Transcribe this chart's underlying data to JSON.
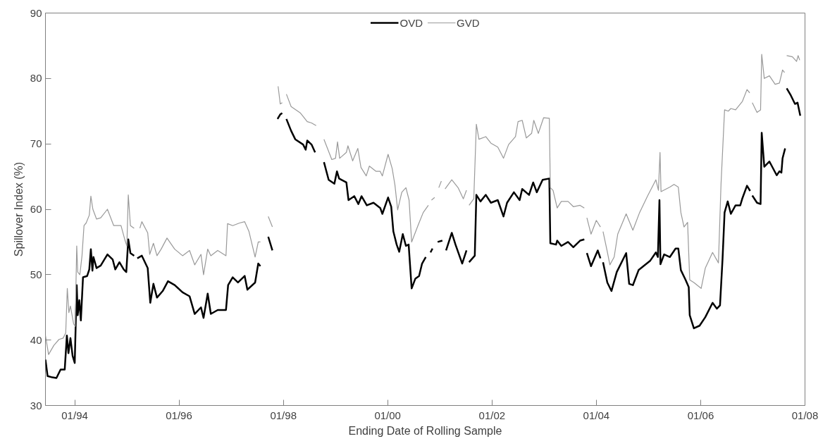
{
  "chart_data": {
    "type": "line",
    "xlabel": "Ending Date of Rolling Sample",
    "ylabel": "Spillover Index (%)",
    "xlim": [
      "1993-06-10",
      "2008-01-01"
    ],
    "ylim": [
      30,
      90
    ],
    "xticks": [
      {
        "value": "1994-01-01",
        "label": "01/94"
      },
      {
        "value": "1996-01-01",
        "label": "01/96"
      },
      {
        "value": "1998-01-01",
        "label": "01/98"
      },
      {
        "value": "2000-01-01",
        "label": "01/00"
      },
      {
        "value": "2002-01-01",
        "label": "01/02"
      },
      {
        "value": "2004-01-01",
        "label": "01/04"
      },
      {
        "value": "2006-01-01",
        "label": "01/06"
      },
      {
        "value": "2008-01-01",
        "label": "01/08"
      }
    ],
    "yticks": [
      30,
      40,
      50,
      60,
      70,
      80,
      90
    ],
    "grid": false,
    "legend": "top",
    "marker": "none",
    "line_style": "solid",
    "series": [
      {
        "name": "OVD",
        "color": "#000000",
        "x": [
          "1993-06-10",
          "1993-06-25",
          "1993-07-28",
          "1993-08-26",
          "1993-09-24",
          "1993-10-23",
          "1993-11-07",
          "1993-11-18",
          "1993-12-02",
          "1993-12-17",
          "1994-01-01",
          "1994-01-15",
          "1994-01-22",
          "1994-02-02",
          "1994-02-13",
          "1994-02-28",
          "1994-03-29",
          "1994-04-13",
          "1994-04-24",
          "1994-05-05",
          "1994-05-12",
          "1994-06-03",
          "1994-07-02",
          "1994-08-18",
          "1994-09-24",
          "1994-10-12",
          "1994-11-10",
          "1994-12-10",
          "1994-12-28",
          "1995-01-11",
          "1995-01-26",
          "1995-02-21",
          "1995-03-04",
          "1995-03-15",
          "1995-04-16",
          "1995-05-27",
          "1995-06-14",
          "1995-07-06",
          "1995-07-31",
          "1995-09-09",
          "1995-10-16",
          "1995-12-02",
          "1996-01-26",
          "1996-03-15",
          "1996-04-20",
          "1996-06-03",
          "1996-06-21",
          "1996-07-20",
          "1996-08-11",
          "1996-09-28",
          "1996-11-25",
          "1996-12-10",
          "1997-01-11",
          "1997-02-17",
          "1997-04-05",
          "1997-04-24",
          "1997-06-17",
          "1997-07-09",
          "1997-07-24",
          "1997-08-22",
          "1997-09-17",
          "1997-10-16",
          "1997-11-03",
          "1997-11-21",
          "1997-12-10",
          "1997-12-24",
          "1998-01-08",
          "1998-01-22",
          "1998-02-24",
          "1998-03-25",
          "1998-05-19",
          "1998-06-06",
          "1998-06-17",
          "1998-07-17",
          "1998-08-11",
          "1998-09-13",
          "1998-10-12",
          "1998-11-14",
          "1998-12-24",
          "1999-01-11",
          "1999-01-26",
          "1999-03-18",
          "1999-04-02",
          "1999-05-12",
          "1999-06-10",
          "1999-07-02",
          "1999-08-08",
          "1999-09-24",
          "1999-11-10",
          "1999-11-25",
          "2000-01-04",
          "2000-01-26",
          "2000-02-10",
          "2000-03-04",
          "2000-03-22",
          "2000-04-16",
          "2000-05-08",
          "2000-05-27",
          "2000-06-17",
          "2000-07-13",
          "2000-08-08",
          "2000-08-29",
          "2000-09-24",
          "2000-10-12",
          "2000-10-27",
          "2000-11-10",
          "2000-12-04",
          "2000-12-16",
          "2001-01-18",
          "2001-01-30",
          "2001-02-13",
          "2001-03-25",
          "2001-04-20",
          "2001-06-06",
          "2001-07-06",
          "2001-07-15",
          "2001-07-24",
          "2001-09-02",
          "2001-09-13",
          "2001-10-12",
          "2001-11-18",
          "2001-12-24",
          "2002-02-10",
          "2002-03-22",
          "2002-04-16",
          "2002-06-03",
          "2002-07-13",
          "2002-07-31",
          "2002-09-17",
          "2002-10-16",
          "2002-11-10",
          "2002-12-21",
          "2003-02-06",
          "2003-02-13",
          "2003-03-25",
          "2003-04-02",
          "2003-05-01",
          "2003-06-17",
          "2003-07-24",
          "2003-09-09",
          "2003-10-09",
          "2003-10-20",
          "2003-10-27",
          "2003-11-25",
          "2004-01-11",
          "2004-01-30",
          "2004-02-06",
          "2004-02-17",
          "2004-03-18",
          "2004-04-16",
          "2004-05-23",
          "2004-07-28",
          "2004-08-18",
          "2004-09-13",
          "2004-10-23",
          "2004-12-02",
          "2005-01-11",
          "2005-02-21",
          "2005-03-07",
          "2005-03-18",
          "2005-03-25",
          "2005-04-20",
          "2005-05-30",
          "2005-07-09",
          "2005-07-28",
          "2005-08-15",
          "2005-09-17",
          "2005-10-09",
          "2005-10-16",
          "2005-11-14",
          "2005-12-24",
          "2006-02-02",
          "2006-03-25",
          "2006-04-24",
          "2006-05-16",
          "2006-06-03",
          "2006-06-17",
          "2006-07-09",
          "2006-07-31",
          "2006-09-02",
          "2006-10-05",
          "2006-10-20",
          "2006-11-21",
          "2006-12-13",
          "2006-12-21",
          "2006-12-28",
          "2007-01-30",
          "2007-02-24",
          "2007-03-04",
          "2007-03-22",
          "2007-04-27",
          "2007-06-17",
          "2007-07-06",
          "2007-07-20",
          "2007-07-28",
          "2007-08-15",
          "2007-08-20",
          "2007-08-26",
          "2007-09-24",
          "2007-10-23",
          "2007-11-10",
          "2007-11-29"
        ],
        "values": [
          37.0,
          34.5,
          34.3,
          34.2,
          35.5,
          35.5,
          40.7,
          38.0,
          40.3,
          37.6,
          36.5,
          48.4,
          43.8,
          46.1,
          43.0,
          49.6,
          49.8,
          50.8,
          53.9,
          50.6,
          52.7,
          51.0,
          51.4,
          53.1,
          52.3,
          50.8,
          51.9,
          50.8,
          50.4,
          55.4,
          53.3,
          52.9,
          null,
          52.5,
          52.9,
          51.0,
          45.7,
          48.6,
          46.5,
          47.5,
          49.0,
          48.4,
          47.3,
          46.7,
          44.0,
          45.0,
          43.4,
          47.1,
          44.0,
          44.6,
          44.6,
          48.4,
          49.6,
          48.8,
          49.8,
          47.7,
          48.8,
          51.7,
          51.3,
          null,
          55.8,
          53.7,
          null,
          73.8,
          74.5,
          74.7,
          null,
          73.8,
          72.0,
          70.7,
          69.9,
          69.1,
          70.5,
          69.9,
          68.7,
          null,
          67.2,
          64.5,
          63.9,
          65.8,
          64.7,
          64.1,
          61.4,
          62.0,
          60.8,
          62.0,
          60.6,
          61.0,
          60.2,
          59.3,
          61.8,
          60.4,
          56.6,
          54.6,
          53.5,
          56.2,
          54.4,
          54.6,
          47.9,
          49.4,
          49.8,
          51.7,
          52.7,
          null,
          53.4,
          54.0,
          null,
          55.0,
          55.2,
          null,
          53.7,
          56.4,
          54.6,
          51.7,
          53.7,
          null,
          51.9,
          52.9,
          62.2,
          61.2,
          62.2,
          61.0,
          61.4,
          58.9,
          61.0,
          62.6,
          61.4,
          63.1,
          62.2,
          64.1,
          62.6,
          64.5,
          64.7,
          54.8,
          54.6,
          55.2,
          54.4,
          55.0,
          54.2,
          55.2,
          55.4,
          null,
          53.3,
          51.3,
          53.7,
          52.5,
          null,
          51.9,
          48.8,
          47.5,
          50.4,
          53.3,
          48.6,
          48.4,
          50.7,
          51.4,
          52.1,
          53.4,
          52.7,
          61.4,
          51.6,
          53.1,
          52.7,
          54.0,
          54.0,
          50.7,
          49.2,
          48.1,
          43.8,
          41.8,
          42.2,
          43.5,
          45.7,
          44.8,
          45.3,
          52.5,
          59.5,
          61.2,
          59.3,
          60.6,
          60.6,
          61.7,
          63.6,
          62.8,
          null,
          62.1,
          61.0,
          60.8,
          71.7,
          66.5,
          67.3,
          65.2,
          65.8,
          65.6,
          67.8,
          69.3,
          null,
          78.5,
          77.4,
          76.1,
          76.3,
          74.3
        ]
      },
      {
        "name": "GVD",
        "color": "#999999",
        "x": [
          "1993-06-10",
          "1993-07-02",
          "1993-08-08",
          "1993-09-13",
          "1993-10-12",
          "1993-10-30",
          "1993-11-10",
          "1993-11-21",
          "1993-12-02",
          "1993-12-24",
          "1994-01-04",
          "1994-01-15",
          "1994-01-22",
          "1994-02-06",
          "1994-02-21",
          "1994-03-07",
          "1994-03-22",
          "1994-04-13",
          "1994-04-24",
          "1994-05-08",
          "1994-06-03",
          "1994-07-02",
          "1994-08-18",
          "1994-10-01",
          "1994-11-21",
          "1994-12-17",
          "1995-01-01",
          "1995-01-11",
          "1995-01-26",
          "1995-02-21",
          "1995-03-15",
          "1995-04-02",
          "1995-04-16",
          "1995-05-27",
          "1995-06-10",
          "1995-07-06",
          "1995-07-31",
          "1995-08-29",
          "1995-10-09",
          "1995-12-02",
          "1996-01-26",
          "1996-03-15",
          "1996-04-20",
          "1996-06-03",
          "1996-06-21",
          "1996-07-20",
          "1996-08-11",
          "1996-09-28",
          "1996-11-25",
          "1996-12-06",
          "1997-01-11",
          "1997-02-28",
          "1997-04-05",
          "1997-05-05",
          "1997-06-17",
          "1997-07-09",
          "1997-07-24",
          "1997-08-22",
          "1997-09-17",
          "1997-10-16",
          "1997-11-07",
          "1997-11-25",
          "1997-12-10",
          "1997-12-24",
          "1998-01-08",
          "1998-01-22",
          "1998-02-24",
          "1998-05-01",
          "1998-06-17",
          "1998-07-17",
          "1998-08-18",
          "1998-09-13",
          "1998-10-12",
          "1998-12-06",
          "1999-01-01",
          "1999-01-15",
          "1999-01-30",
          "1999-03-18",
          "1999-03-29",
          "1999-05-01",
          "1999-06-06",
          "1999-06-28",
          "1999-08-04",
          "1999-08-26",
          "1999-10-12",
          "1999-11-10",
          "1999-11-25",
          "2000-01-04",
          "2000-02-02",
          "2000-02-21",
          "2000-03-11",
          "2000-04-09",
          "2000-05-08",
          "2000-05-30",
          "2000-06-17",
          "2000-07-31",
          "2000-09-06",
          "2000-10-12",
          "2000-10-23",
          "2000-11-03",
          "2000-11-25",
          "2000-12-10",
          "2000-12-24",
          "2001-01-11",
          "2001-01-26",
          "2001-02-06",
          "2001-03-25",
          "2001-05-08",
          "2001-06-14",
          "2001-07-06",
          "2001-07-15",
          "2001-07-24",
          "2001-08-26",
          "2001-09-13",
          "2001-10-01",
          "2001-11-18",
          "2001-12-24",
          "2002-02-10",
          "2002-03-22",
          "2002-04-27",
          "2002-06-14",
          "2002-07-02",
          "2002-07-31",
          "2002-08-29",
          "2002-10-05",
          "2002-10-20",
          "2002-11-21",
          "2002-12-28",
          "2003-02-06",
          "2003-02-13",
          "2003-03-04",
          "2003-04-02",
          "2003-05-01",
          "2003-06-17",
          "2003-07-24",
          "2003-09-09",
          "2003-10-09",
          "2003-10-20",
          "2003-10-27",
          "2003-11-25",
          "2004-01-01",
          "2004-01-30",
          "2004-02-06",
          "2004-02-17",
          "2004-03-18",
          "2004-04-05",
          "2004-05-05",
          "2004-05-30",
          "2004-07-28",
          "2004-09-13",
          "2004-10-30",
          "2004-12-24",
          "2005-02-21",
          "2005-03-11",
          "2005-03-22",
          "2005-03-29",
          "2005-05-30",
          "2005-06-28",
          "2005-07-28",
          "2005-08-15",
          "2005-09-06",
          "2005-10-01",
          "2005-10-16",
          "2005-11-14",
          "2006-01-04",
          "2006-02-02",
          "2006-03-25",
          "2006-05-05",
          "2006-05-23",
          "2006-06-17",
          "2006-07-13",
          "2006-07-31",
          "2006-09-02",
          "2006-10-20",
          "2006-11-21",
          "2006-12-10",
          "2006-12-21",
          "2006-12-28",
          "2007-01-30",
          "2007-02-24",
          "2007-03-04",
          "2007-03-22",
          "2007-04-27",
          "2007-06-06",
          "2007-07-06",
          "2007-07-28",
          "2007-08-11",
          "2007-08-18",
          "2007-08-26",
          "2007-10-05",
          "2007-11-03",
          "2007-11-14",
          "2007-11-25"
        ],
        "values": [
          40.7,
          37.8,
          39.2,
          40.1,
          40.3,
          41.1,
          47.9,
          44.2,
          45.2,
          42.5,
          42.1,
          54.4,
          50.4,
          50.0,
          52.9,
          57.5,
          57.9,
          59.1,
          62.0,
          60.0,
          58.5,
          58.7,
          60.0,
          57.5,
          57.5,
          55.4,
          54.4,
          62.2,
          57.5,
          57.1,
          null,
          57.1,
          58.1,
          56.4,
          53.1,
          54.8,
          52.9,
          53.9,
          55.6,
          53.9,
          52.9,
          53.7,
          51.5,
          53.1,
          50.0,
          53.9,
          52.9,
          53.7,
          52.9,
          57.8,
          57.5,
          57.9,
          58.1,
          56.6,
          52.7,
          55.0,
          55.0,
          null,
          58.9,
          57.3,
          null,
          78.8,
          76.1,
          76.3,
          null,
          77.6,
          75.7,
          74.7,
          73.4,
          73.2,
          72.8,
          null,
          70.7,
          67.6,
          67.8,
          70.3,
          67.8,
          68.7,
          69.7,
          67.4,
          69.3,
          66.4,
          65.1,
          66.6,
          65.8,
          65.8,
          65.1,
          68.4,
          66.2,
          63.7,
          59.9,
          62.6,
          63.3,
          61.4,
          55.0,
          57.5,
          59.5,
          60.6,
          null,
          61.4,
          61.8,
          null,
          63.3,
          64.3,
          null,
          63.1,
          64.5,
          63.3,
          61.6,
          62.9,
          null,
          60.6,
          61.6,
          73.0,
          70.7,
          71.1,
          70.1,
          69.5,
          67.8,
          69.9,
          71.1,
          73.4,
          73.6,
          70.9,
          71.6,
          73.6,
          71.6,
          74.0,
          73.9,
          63.3,
          62.9,
          60.2,
          61.2,
          61.2,
          60.4,
          60.6,
          60.2,
          null,
          58.7,
          56.2,
          58.3,
          57.3,
          null,
          56.6,
          53.5,
          51.5,
          52.7,
          56.2,
          59.3,
          56.8,
          59.5,
          62.0,
          64.5,
          62.9,
          68.7,
          62.7,
          63.4,
          63.8,
          63.4,
          59.5,
          57.3,
          58.0,
          49.2,
          48.8,
          47.9,
          51.0,
          53.4,
          51.8,
          63.8,
          75.2,
          75.0,
          75.4,
          75.2,
          76.5,
          78.3,
          77.8,
          null,
          76.3,
          74.8,
          75.2,
          83.7,
          80.0,
          80.4,
          79.1,
          79.3,
          81.3,
          80.9,
          null,
          83.5,
          83.3,
          82.6,
          83.5,
          82.8
        ]
      }
    ]
  }
}
